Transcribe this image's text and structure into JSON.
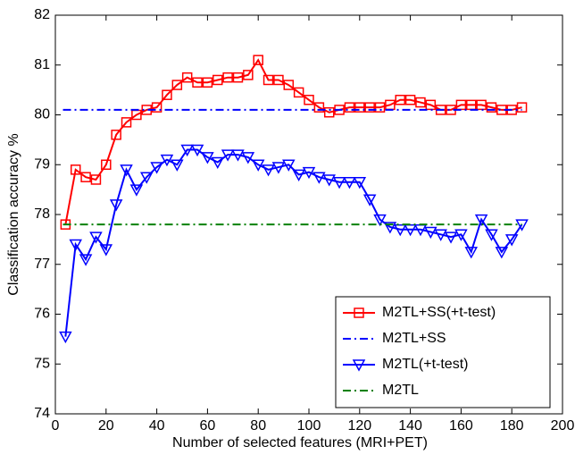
{
  "chart_data": {
    "type": "line",
    "x_label": "Number of selected features (MRI+PET)",
    "y_label": "Classification accuracy %",
    "xlim": [
      0,
      200
    ],
    "xticks": [
      0,
      20,
      40,
      60,
      80,
      100,
      120,
      140,
      160,
      180,
      200
    ],
    "ylim": [
      74,
      82
    ],
    "yticks": [
      74,
      75,
      76,
      77,
      78,
      79,
      80,
      81,
      82
    ],
    "legend": "lower right",
    "series": [
      {
        "name": "M2TL+SS(+t-test)",
        "color": "#ff0000",
        "marker": "square",
        "line_style": "solid",
        "x": [
          4,
          8,
          12,
          16,
          20,
          24,
          28,
          32,
          36,
          40,
          44,
          48,
          52,
          56,
          60,
          64,
          68,
          72,
          76,
          80,
          84,
          88,
          92,
          96,
          100,
          104,
          108,
          112,
          116,
          120,
          124,
          128,
          132,
          136,
          140,
          144,
          148,
          152,
          156,
          160,
          164,
          168,
          172,
          176,
          180,
          184
        ],
        "values": [
          77.8,
          78.9,
          78.75,
          78.7,
          79.0,
          79.6,
          79.85,
          80.0,
          80.1,
          80.15,
          80.4,
          80.6,
          80.75,
          80.65,
          80.65,
          80.7,
          80.75,
          80.75,
          80.8,
          81.1,
          80.7,
          80.7,
          80.6,
          80.45,
          80.3,
          80.15,
          80.05,
          80.1,
          80.15,
          80.15,
          80.15,
          80.15,
          80.2,
          80.3,
          80.3,
          80.25,
          80.2,
          80.1,
          80.1,
          80.2,
          80.2,
          80.2,
          80.15,
          80.1,
          80.1,
          80.15
        ]
      },
      {
        "name": "M2TL+SS",
        "color": "#0000ff",
        "marker": "none",
        "line_style": "dash-dot",
        "x": [
          3,
          184
        ],
        "values": [
          80.1,
          80.1
        ]
      },
      {
        "name": "M2TL(+t-test)",
        "color": "#0000ff",
        "marker": "triangle-down",
        "line_style": "solid",
        "x": [
          4,
          8,
          12,
          16,
          20,
          24,
          28,
          32,
          36,
          40,
          44,
          48,
          52,
          56,
          60,
          64,
          68,
          72,
          76,
          80,
          84,
          88,
          92,
          96,
          100,
          104,
          108,
          112,
          116,
          120,
          124,
          128,
          132,
          136,
          140,
          144,
          148,
          152,
          156,
          160,
          164,
          168,
          172,
          176,
          180,
          184
        ],
        "values": [
          75.55,
          77.4,
          77.1,
          77.55,
          77.3,
          78.2,
          78.9,
          78.5,
          78.75,
          78.95,
          79.1,
          79.0,
          79.3,
          79.3,
          79.15,
          79.05,
          79.2,
          79.2,
          79.15,
          79.0,
          78.9,
          78.95,
          79.0,
          78.8,
          78.85,
          78.75,
          78.7,
          78.65,
          78.65,
          78.65,
          78.3,
          77.9,
          77.75,
          77.7,
          77.7,
          77.7,
          77.65,
          77.6,
          77.55,
          77.6,
          77.25,
          77.9,
          77.6,
          77.25,
          77.5,
          77.8
        ]
      },
      {
        "name": "M2TL",
        "color": "#008000",
        "marker": "none",
        "line_style": "dash-dot",
        "x": [
          3,
          184
        ],
        "values": [
          77.8,
          77.8
        ]
      }
    ]
  }
}
